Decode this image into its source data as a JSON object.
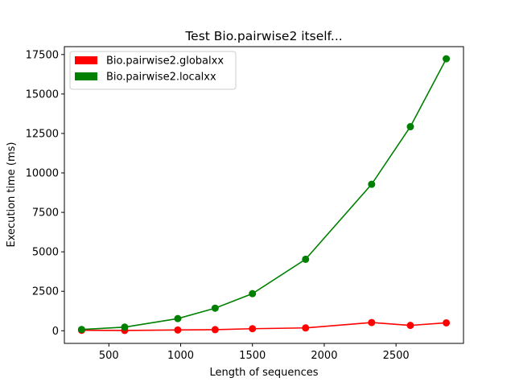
{
  "chart_data": {
    "type": "line",
    "title": "Test Bio.pairwise2 itself...",
    "xlabel": "Length of sequences",
    "ylabel": "Execution time (ms)",
    "xlim": [
      190,
      2970
    ],
    "ylim": [
      -800,
      18000
    ],
    "xticks": [
      500,
      1000,
      1500,
      2000,
      2500
    ],
    "yticks": [
      0,
      2500,
      5000,
      7500,
      10000,
      12500,
      15000,
      17500
    ],
    "grid": false,
    "legend_position": "top-left",
    "series": [
      {
        "name": "Bio.pairwise2.globalxx",
        "color": "#ff0000",
        "x": [
          310,
          610,
          980,
          1240,
          1500,
          1870,
          2330,
          2600,
          2850
        ],
        "y": [
          30,
          20,
          50,
          70,
          130,
          180,
          520,
          340,
          500
        ]
      },
      {
        "name": "Bio.pairwise2.localxx",
        "color": "#008000",
        "x": [
          310,
          610,
          980,
          1240,
          1500,
          1870,
          2330,
          2600,
          2850
        ],
        "y": [
          80,
          230,
          770,
          1430,
          2350,
          4530,
          9280,
          12930,
          17230
        ]
      }
    ]
  }
}
